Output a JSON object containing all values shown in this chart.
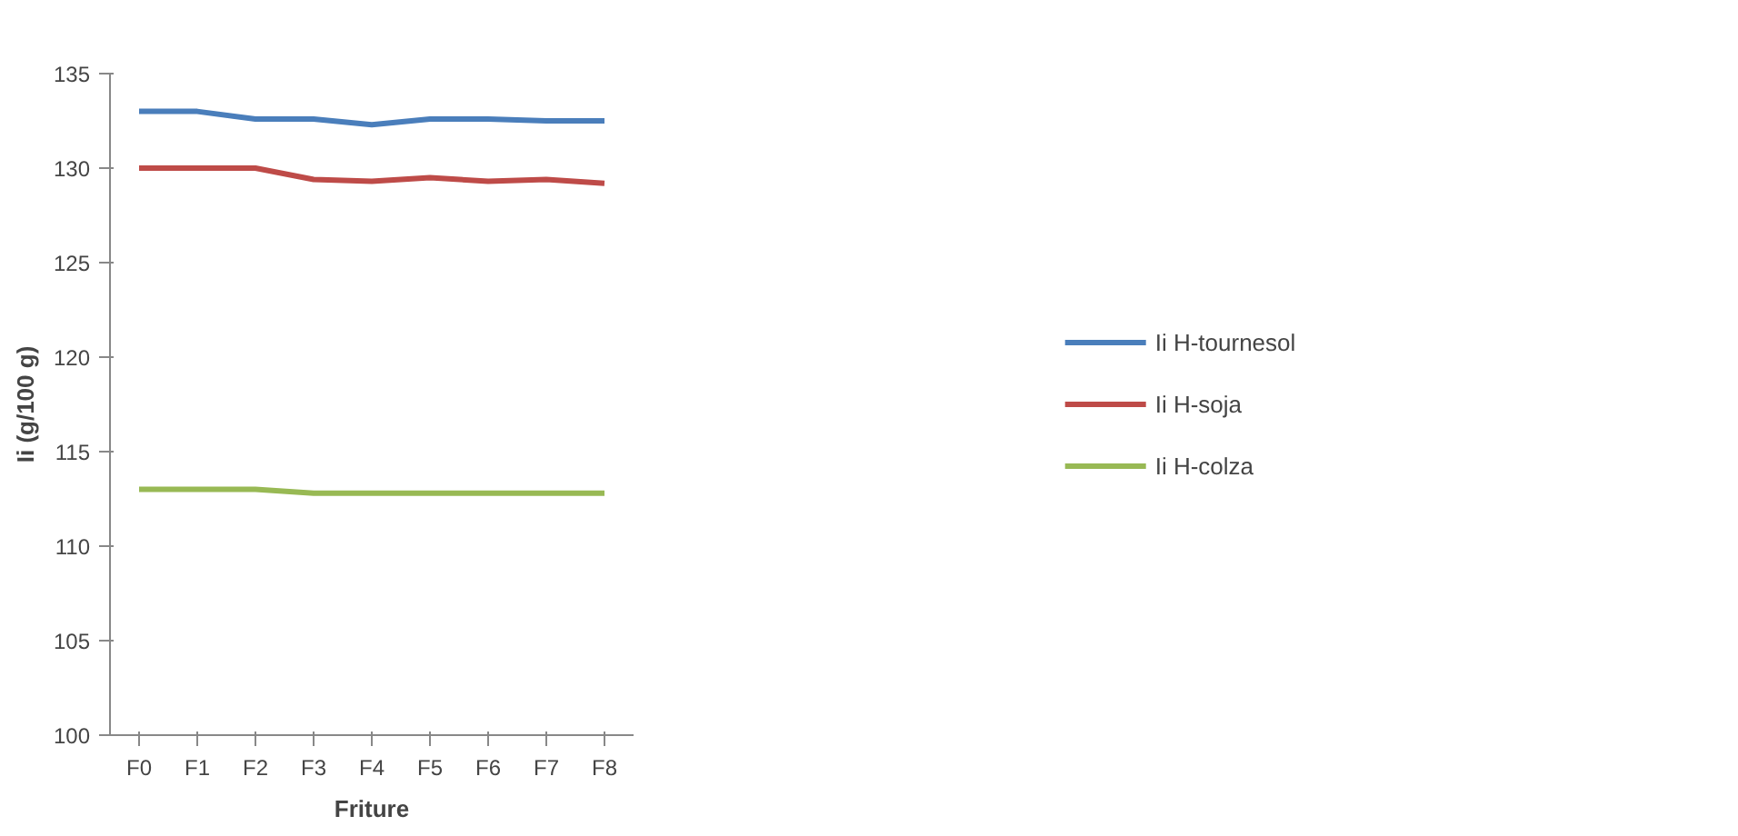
{
  "chart_data": {
    "type": "line",
    "xlabel": "Friture",
    "ylabel": "Ii (g/100 g)",
    "categories": [
      "F0",
      "F1",
      "F2",
      "F3",
      "F4",
      "F5",
      "F6",
      "F7",
      "F8"
    ],
    "series": [
      {
        "name": "Ii H-tournesol",
        "color": "#4a7ebb",
        "values": [
          133,
          133,
          132.6,
          132.6,
          132.3,
          132.6,
          132.6,
          132.5,
          132.5
        ]
      },
      {
        "name": "Ii H-soja",
        "color": "#be4b48",
        "values": [
          130,
          130,
          130,
          129.4,
          129.3,
          129.5,
          129.3,
          129.4,
          129.2
        ]
      },
      {
        "name": "Ii H-colza",
        "color": "#98b954",
        "values": [
          113,
          113,
          113,
          112.8,
          112.8,
          112.8,
          112.8,
          112.8,
          112.8
        ]
      }
    ],
    "ylim": [
      100,
      135
    ],
    "yticks": [
      100,
      105,
      110,
      115,
      120,
      125,
      130,
      135
    ],
    "grid": false,
    "legend": "right",
    "marker": "none",
    "line_style": "solid"
  }
}
